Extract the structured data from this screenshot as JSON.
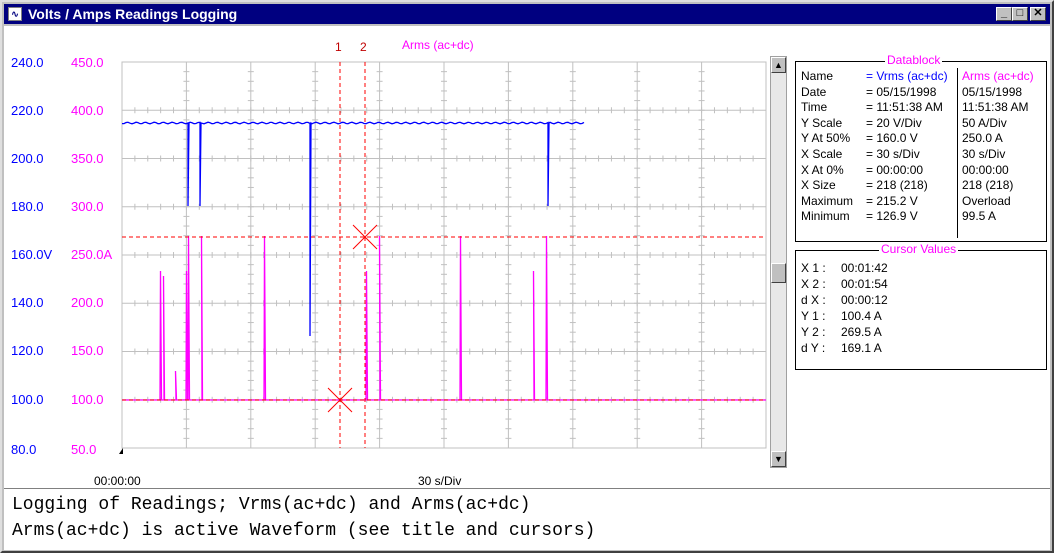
{
  "window": {
    "title": "Volts / Amps Readings Logging",
    "app_icon": "scope-icon",
    "controls": {
      "minimize": "_",
      "maximize": "□",
      "close": "✕"
    }
  },
  "plot": {
    "waveform_label": "Arms (ac+dc)",
    "volts_axis": [
      "240.0",
      "220.0",
      "200.0",
      "180.0",
      "160.0V",
      "140.0",
      "120.0",
      "100.0",
      "80.0"
    ],
    "amps_axis": [
      "450.0",
      "400.0",
      "350.0",
      "300.0",
      "250.0A",
      "200.0",
      "150.0",
      "100.0",
      "50.0"
    ],
    "x_start": "00:00:00",
    "x_scale": "30 s/Div",
    "cursor1_label": "1",
    "cursor2_label": "2",
    "colors": {
      "volts": "#0000ff",
      "amps": "#ff00ff",
      "cursor": "#ff0000",
      "grid": "#c0c0c0"
    }
  },
  "datablock": {
    "title": "Datablock",
    "rows": [
      {
        "label": "Name",
        "v": "= Vrms (ac+dc)",
        "a": "Arms (ac+dc)"
      },
      {
        "label": "Date",
        "v": "= 05/15/1998",
        "a": "05/15/1998"
      },
      {
        "label": "Time",
        "v": "= 11:51:38 AM",
        "a": "11:51:38 AM"
      },
      {
        "label": "Y Scale",
        "v": "=  20   V/Div",
        "a": "50   A/Div"
      },
      {
        "label": "Y At 50%",
        "v": "= 160.0 V",
        "a": "250.0 A"
      },
      {
        "label": "X Scale",
        "v": "=  30   s/Div",
        "a": "30   s/Div"
      },
      {
        "label": "X At 0%",
        "v": "= 00:00:00",
        "a": "00:00:00"
      },
      {
        "label": "X Size",
        "v": "= 218 (218)",
        "a": "218 (218)"
      },
      {
        "label": "Maximum",
        "v": "= 215.2 V",
        "a": "Overload"
      },
      {
        "label": "Minimum",
        "v": "= 126.9 V",
        "a": "99.5 A"
      }
    ]
  },
  "cursor_values": {
    "title": "Cursor Values",
    "rows": [
      {
        "label": "X 1 :",
        "value": "00:01:42"
      },
      {
        "label": "X 2 :",
        "value": "00:01:54"
      },
      {
        "label": "d X :",
        "value": "00:00:12"
      },
      {
        "label": "Y 1 :",
        "value": "100.4 A"
      },
      {
        "label": "Y 2 :",
        "value": "269.5 A"
      },
      {
        "label": "d Y :",
        "value": "169.1 A"
      }
    ]
  },
  "notes": {
    "line1": "Logging of Readings; Vrms(ac+dc) and Arms(ac+dc)",
    "line2": "Arms(ac+dc) is active Waveform (see title and cursors)"
  }
}
